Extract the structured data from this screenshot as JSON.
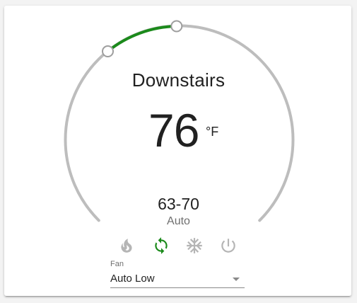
{
  "thermostat": {
    "name": "Downstairs",
    "current_temperature": "76",
    "unit": "°F",
    "target_range": "63-70",
    "mode_label": "Auto",
    "range_low": 63,
    "range_high": 70,
    "modes": [
      {
        "id": "heat",
        "icon": "flame-icon",
        "active": false
      },
      {
        "id": "heat_cool",
        "icon": "sync-icon",
        "active": true
      },
      {
        "id": "cool",
        "icon": "snowflake-icon",
        "active": false
      },
      {
        "id": "off",
        "icon": "power-icon",
        "active": false
      }
    ]
  },
  "fan": {
    "label": "Fan",
    "value": "Auto Low"
  },
  "colors": {
    "track": "#bdbdbd",
    "range_arc": "#1b8a1b",
    "active_mode": "#1b8a1b",
    "inactive_mode": "#b5b5b5",
    "text_primary": "#212121",
    "text_secondary": "#6f6f6f"
  }
}
